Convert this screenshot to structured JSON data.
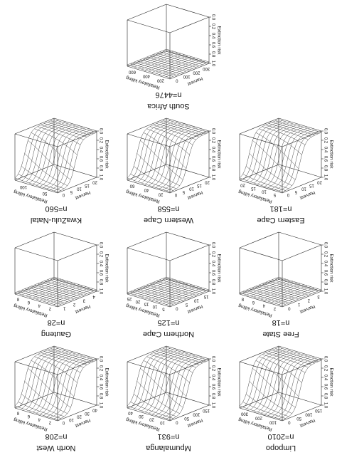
{
  "axis_labels": {
    "z": "Extinction risk",
    "harvest": "Harvest",
    "retaliatory": "Retaliatory killing"
  },
  "z_ticks": [
    "0.0",
    "0.2",
    "0.4",
    "0.6",
    "0.8",
    "1.0"
  ],
  "panels": [
    {
      "title": "Limpopo",
      "n": "n=2010",
      "harvest_ticks": [
        0,
        50,
        100,
        150
      ],
      "retaliatory_ticks": [
        100,
        200,
        300
      ]
    },
    {
      "title": "Mpumalanga",
      "n": "n=931",
      "harvest_ticks": [
        0,
        50,
        100,
        150
      ],
      "retaliatory_ticks": [
        10,
        20,
        30,
        40
      ]
    },
    {
      "title": "North West",
      "n": "n=208",
      "harvest_ticks": [
        0,
        10,
        20,
        30,
        40
      ],
      "retaliatory_ticks": [
        2,
        4,
        6,
        8
      ]
    },
    {
      "title": "Free State",
      "n": "n=18",
      "harvest_ticks": [
        0,
        1,
        2,
        3
      ],
      "retaliatory_ticks": [
        2,
        4,
        6,
        8
      ]
    },
    {
      "title": "Northern Cape",
      "n": "n=125",
      "harvest_ticks": [
        0,
        5,
        10,
        15
      ],
      "retaliatory_ticks": [
        5,
        10,
        15,
        20,
        25
      ]
    },
    {
      "title": "Gauteng",
      "n": "n=28",
      "harvest_ticks": [
        1,
        2,
        3,
        4
      ],
      "retaliatory_ticks": [
        2,
        4,
        6,
        8
      ]
    },
    {
      "title": "Eastern Cape",
      "n": "n=181",
      "harvest_ticks": [
        0,
        5,
        10,
        15,
        20
      ],
      "retaliatory_ticks": [
        5,
        10,
        15,
        20
      ]
    },
    {
      "title": "Western Cape",
      "n": "n=558",
      "harvest_ticks": [
        0,
        5,
        10,
        15,
        20
      ],
      "retaliatory_ticks": [
        20,
        40,
        60
      ]
    },
    {
      "title": "KwaZulu-Natal",
      "n": "n=560",
      "harvest_ticks": [
        0,
        5,
        10,
        15,
        20
      ],
      "retaliatory_ticks": [
        50,
        100
      ]
    },
    {
      "title": "South Africa",
      "n": "n=4476",
      "harvest_ticks": [
        0,
        100,
        200,
        300
      ],
      "retaliatory_ticks": [
        200,
        400,
        600
      ]
    }
  ]
}
